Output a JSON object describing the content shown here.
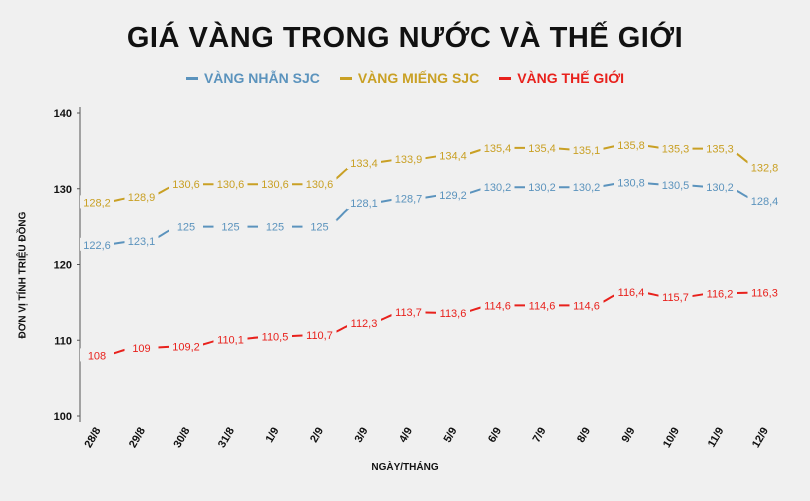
{
  "title": "GIÁ VÀNG TRONG NƯỚC VÀ THẾ GIỚI",
  "legend": [
    {
      "label": "VÀNG NHẪN SJC",
      "color": "#5b93bd"
    },
    {
      "label": "VÀNG MIẾNG SJC",
      "color": "#c9a024"
    },
    {
      "label": "VÀNG THẾ GIỚI",
      "color": "#e8211c"
    }
  ],
  "axes": {
    "ylabel": "ĐƠN VỊ TÍNH TRIỆU ĐỒNG",
    "xlabel": "NGÀY/THÁNG",
    "yticks": [
      "140",
      "130",
      "120",
      "110",
      "100"
    ]
  },
  "chart_data": {
    "type": "line",
    "title": "GIÁ VÀNG TRONG NƯỚC VÀ THẾ GIỚI",
    "xlabel": "NGÀY/THÁNG",
    "ylabel": "ĐƠN VỊ TÍNH TRIỆU ĐỒNG",
    "ylim": [
      100,
      140
    ],
    "yticks": [
      100,
      110,
      120,
      130,
      140
    ],
    "grid": false,
    "legend_position": "top",
    "categories": [
      "28/8",
      "29/8",
      "30/8",
      "31/8",
      "1/9",
      "2/9",
      "3/9",
      "4/9",
      "5/9",
      "6/9",
      "7/9",
      "8/9",
      "9/9",
      "10/9",
      "11/9",
      "12/9"
    ],
    "series": [
      {
        "name": "VÀNG NHẪN SJC",
        "color": "#5b93bd",
        "values": [
          122.6,
          123.1,
          125,
          125,
          125,
          125,
          128.1,
          128.7,
          129.2,
          130.2,
          130.2,
          130.2,
          130.8,
          130.5,
          130.2,
          128.4
        ],
        "labels": [
          "122,6",
          "123,1",
          "125",
          "125",
          "125",
          "125",
          "128,1",
          "128,7",
          "129,2",
          "130,2",
          "130,2",
          "130,2",
          "130,8",
          "130,5",
          "130,2",
          "128,4"
        ]
      },
      {
        "name": "VÀNG MIẾNG SJC",
        "color": "#c9a024",
        "values": [
          128.2,
          128.9,
          130.6,
          130.6,
          130.6,
          130.6,
          133.4,
          133.9,
          134.4,
          135.4,
          135.4,
          135.1,
          135.8,
          135.3,
          135.3,
          132.8
        ],
        "labels": [
          "128,2",
          "128,9",
          "130,6",
          "130,6",
          "130,6",
          "130,6",
          "133,4",
          "133,9",
          "134,4",
          "135,4",
          "135,4",
          "135,1",
          "135,8",
          "135,3",
          "135,3",
          "132,8"
        ]
      },
      {
        "name": "VÀNG THẾ GIỚI",
        "color": "#e8211c",
        "values": [
          108,
          109,
          109.2,
          110.1,
          110.5,
          110.7,
          112.3,
          113.7,
          113.6,
          114.6,
          114.6,
          114.6,
          116.4,
          115.7,
          116.2,
          116.3
        ],
        "labels": [
          "108",
          "109",
          "109,2",
          "110,1",
          "110,5",
          "110,7",
          "112,3",
          "113,7",
          "113,6",
          "114,6",
          "114,6",
          "114,6",
          "116,4",
          "115,7",
          "116,2",
          "116,3"
        ]
      }
    ]
  }
}
